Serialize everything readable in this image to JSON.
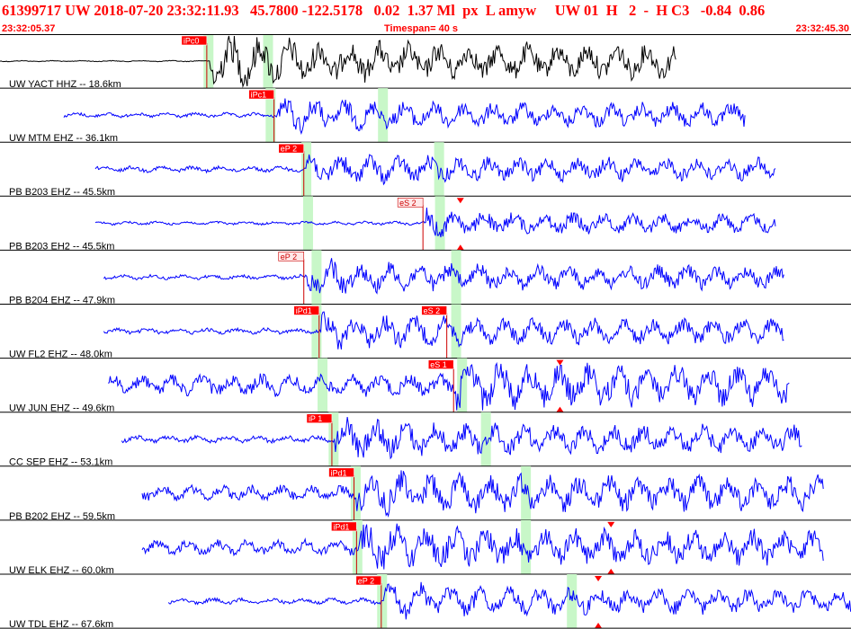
{
  "header": {
    "title_line": "61399717 UW 2018-07-20 23:32:11.93   45.7800 -122.5178   0.02  1.37 Ml  px  L amyw     UW 01  H   2  -  H C3   -0.84  0.86",
    "start_time": "23:32:05.37",
    "timespan_label": "Timespan=  40 s",
    "end_time": "23:32:45.30"
  },
  "colors": {
    "header_text": "#ff0000",
    "trace_reference": "#000000",
    "trace": "#0000ff",
    "pick_box": "#ff0000",
    "pick_box_outline": "#ffffff",
    "predicted_box": "#ffe8e8",
    "window": "#c8f7c8",
    "row_line": "#000000"
  },
  "traces": [
    {
      "label": "UW YACT HHZ -- 18.6km",
      "color": "#000000",
      "ref": true,
      "noise": 0.02,
      "amp": 1.0,
      "start": 0,
      "end": 0.795,
      "windows": [
        0.245,
        0.315
      ],
      "picks": [
        {
          "text": "iPc0",
          "x": 0.243,
          "type": "filled"
        }
      ],
      "markers": []
    },
    {
      "label": "UW MTM EHZ -- 36.1km",
      "color": "#0000ff",
      "noise": 0.08,
      "amp": 0.55,
      "start": 0.075,
      "end": 0.876,
      "windows": [
        0.318,
        0.45
      ],
      "picks": [
        {
          "text": "iPc1",
          "x": 0.322,
          "type": "filled"
        }
      ],
      "markers": []
    },
    {
      "label": "PB B203 EHZ -- 45.5km",
      "color": "#0000ff",
      "noise": 0.1,
      "amp": 0.5,
      "start": 0.112,
      "end": 0.912,
      "windows": [
        0.36,
        0.516
      ],
      "picks": [
        {
          "text": "eP 2",
          "x": 0.357,
          "type": "filled"
        }
      ],
      "markers": []
    },
    {
      "label": "PB B203 EH2 -- 45.5km",
      "color": "#0000ff",
      "noise": 0.06,
      "amp": 0.45,
      "start": 0.112,
      "end": 0.912,
      "windows": [
        0.362,
        0.517
      ],
      "picks": [
        {
          "text": "eS 2",
          "x": 0.497,
          "type": "outline"
        }
      ],
      "markers": [
        0.541
      ]
    },
    {
      "label": "PB B204 EHZ -- 47.9km",
      "color": "#0000ff",
      "noise": 0.08,
      "amp": 0.55,
      "start": 0.122,
      "end": 0.922,
      "windows": [
        0.372,
        0.536
      ],
      "picks": [
        {
          "text": "eP 2",
          "x": 0.357,
          "type": "outline"
        }
      ],
      "markers": []
    },
    {
      "label": "UW FL2 EHZ -- 48.0km",
      "color": "#0000ff",
      "noise": 0.1,
      "amp": 0.55,
      "start": 0.122,
      "end": 0.922,
      "windows": [
        0.372,
        0.536
      ],
      "picks": [
        {
          "text": "iPd1",
          "x": 0.375,
          "type": "filled"
        },
        {
          "text": "eS 2",
          "x": 0.525,
          "type": "filled"
        }
      ],
      "markers": []
    },
    {
      "label": "UW JUN EHZ -- 49.6km",
      "color": "#0000ff",
      "noise": 0.35,
      "amp": 0.55,
      "start": 0.127,
      "end": 0.928,
      "windows": [
        0.379,
        0.543
      ],
      "picks": [
        {
          "text": "eS 1",
          "x": 0.533,
          "type": "filled"
        }
      ],
      "markers": [
        0.658
      ]
    },
    {
      "label": "CC SEP EHZ -- 53.1km",
      "color": "#0000ff",
      "noise": 0.12,
      "amp": 0.6,
      "start": 0.143,
      "end": 0.943,
      "windows": [
        0.392,
        0.571
      ],
      "picks": [
        {
          "text": "iP 1",
          "x": 0.39,
          "type": "filled"
        }
      ],
      "markers": []
    },
    {
      "label": "PB B202 EHZ -- 59.5km",
      "color": "#0000ff",
      "noise": 0.25,
      "amp": 0.55,
      "start": 0.167,
      "end": 0.968,
      "windows": [
        0.418,
        0.618
      ],
      "picks": [
        {
          "text": "iPd1",
          "x": 0.416,
          "type": "filled"
        }
      ],
      "markers": []
    },
    {
      "label": "UW ELK EHZ -- 60.0km",
      "color": "#0000ff",
      "noise": 0.25,
      "amp": 0.55,
      "start": 0.167,
      "end": 0.968,
      "windows": [
        0.42,
        0.618
      ],
      "picks": [
        {
          "text": "iPd1",
          "x": 0.419,
          "type": "filled"
        }
      ],
      "markers": [
        0.718
      ]
    },
    {
      "label": "UW TDL EHZ -- 67.6km",
      "color": "#0000ff",
      "noise": 0.1,
      "amp": 0.55,
      "start": 0.198,
      "end": 1.0,
      "windows": [
        0.449,
        0.672
      ],
      "picks": [
        {
          "text": "eP 2",
          "x": 0.448,
          "type": "filled"
        }
      ],
      "markers": [
        0.703
      ]
    }
  ]
}
